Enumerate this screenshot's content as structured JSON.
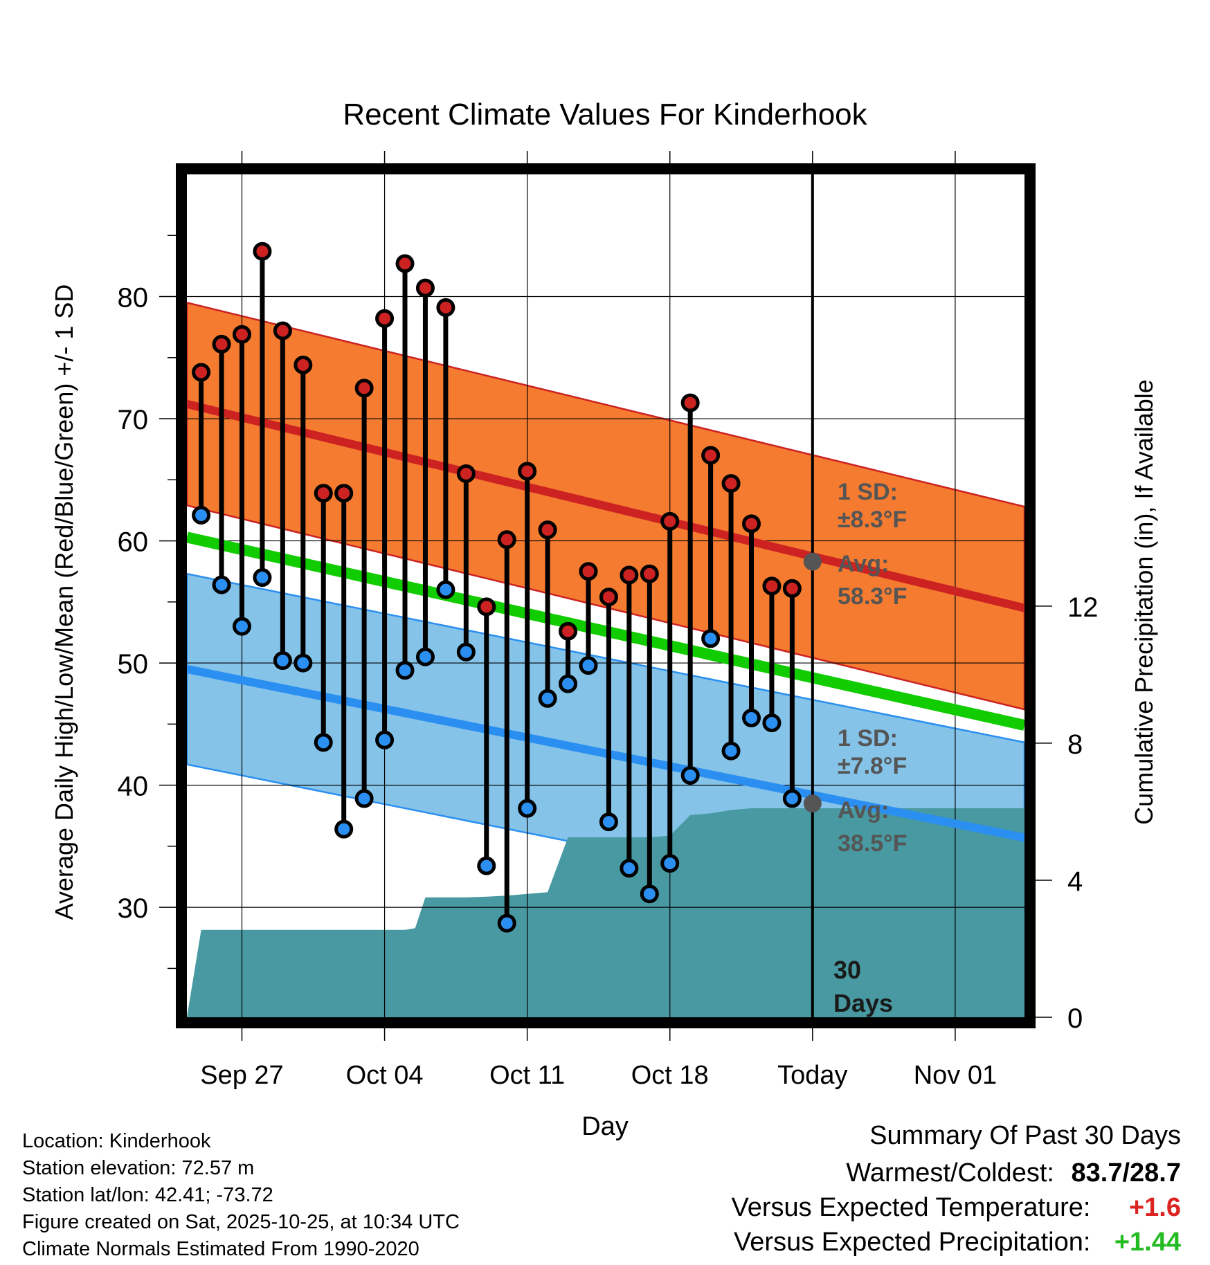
{
  "chart_data": {
    "type": "line",
    "title": "Recent Climate Values For Kinderhook",
    "xlabel": "Day",
    "ylabel": "Average Daily High/Low/Mean (Red/Blue/Green) +/- 1 SD",
    "y2label": "Cumulative Precipitation (in), If Available",
    "xlim": [
      -2.7,
      38.4
    ],
    "ylim": [
      21.0,
      90.0
    ],
    "y2lim": [
      0.0,
      24.6
    ],
    "grid": true,
    "x_ticks": [
      {
        "x": 0,
        "label": "Sep 27"
      },
      {
        "x": 7,
        "label": "Oct 04"
      },
      {
        "x": 14,
        "label": "Oct 11"
      },
      {
        "x": 21,
        "label": "Oct 18"
      },
      {
        "x": 28,
        "label": "Today"
      },
      {
        "x": 35,
        "label": "Nov 01"
      }
    ],
    "y_ticks": [
      30,
      40,
      50,
      60,
      70,
      80
    ],
    "y2_ticks": [
      0,
      4,
      8,
      12
    ],
    "days": [
      -2,
      -1,
      0,
      1,
      2,
      3,
      4,
      5,
      6,
      7,
      8,
      9,
      10,
      11,
      12,
      13,
      14,
      15,
      16,
      17,
      18,
      19,
      20,
      21,
      22,
      23,
      24,
      25,
      26,
      27
    ],
    "series": [
      {
        "name": "Daily High",
        "color": "#cc2222",
        "values": [
          73.8,
          76.1,
          76.9,
          83.7,
          77.2,
          74.4,
          63.9,
          63.9,
          72.5,
          78.2,
          82.7,
          80.7,
          79.1,
          65.5,
          54.6,
          60.1,
          65.7,
          60.9,
          52.6,
          57.5,
          55.4,
          57.2,
          57.3,
          61.6,
          71.3,
          67.0,
          64.7,
          61.4,
          56.3,
          56.1
        ]
      },
      {
        "name": "Daily Low",
        "color": "#2a8ff0",
        "values": [
          62.1,
          56.4,
          53.0,
          57.0,
          50.2,
          50.0,
          43.5,
          36.4,
          38.9,
          43.7,
          49.4,
          50.5,
          56.0,
          50.9,
          33.4,
          28.7,
          38.1,
          47.1,
          48.3,
          49.8,
          37.0,
          33.2,
          31.1,
          33.6,
          40.8,
          52.0,
          42.8,
          45.5,
          45.1,
          38.9
        ]
      }
    ],
    "normal_high": {
      "name": "Avg High",
      "start": 71.2,
      "end": 54.5,
      "sd": 8.3,
      "color": "#cc2222",
      "band_color": "#f47b30"
    },
    "normal_low": {
      "name": "Avg Low",
      "start": 49.5,
      "end": 35.7,
      "sd": 7.8,
      "color": "#2a8ff0",
      "band_color": "#85c3e9"
    },
    "normal_mean": {
      "name": "Avg Mean",
      "start": 60.3,
      "end": 44.9,
      "color": "#11cc00"
    },
    "precip_cumulative": {
      "color": "#4899a1",
      "points": [
        [
          -2.7,
          0.0
        ],
        [
          -2.0,
          2.55
        ],
        [
          8.0,
          2.55
        ],
        [
          8.5,
          2.6
        ],
        [
          9.0,
          3.5
        ],
        [
          11.0,
          3.5
        ],
        [
          12.0,
          3.52
        ],
        [
          13.0,
          3.55
        ],
        [
          14.0,
          3.6
        ],
        [
          15.0,
          3.65
        ],
        [
          16.0,
          5.25
        ],
        [
          20.0,
          5.25
        ],
        [
          21.0,
          5.3
        ],
        [
          22.0,
          5.9
        ],
        [
          23.0,
          5.95
        ],
        [
          24.0,
          6.05
        ],
        [
          25.0,
          6.1
        ],
        [
          26.0,
          6.1
        ],
        [
          28.0,
          6.1
        ],
        [
          38.4,
          6.1
        ]
      ]
    },
    "today_marker": {
      "x": 28,
      "avg_high": 58.3,
      "avg_low": 38.5
    },
    "annotations": {
      "high_sd": "1 SD:",
      "high_sd_value": "±8.3°F",
      "high_avg": "Avg:",
      "high_avg_value": "58.3°F",
      "low_sd": "1 SD:",
      "low_sd_value": "±7.8°F",
      "low_avg": "Avg:",
      "low_avg_value": "38.5°F",
      "period_number": "30",
      "period_unit": "Days"
    }
  },
  "info": {
    "location": "Location: Kinderhook",
    "elevation": "Station elevation: 72.57 m",
    "latlon": "Station lat/lon: 42.41; -73.72",
    "created": "Figure created on Sat, 2025-10-25, at 10:34 UTC",
    "normals": "Climate Normals Estimated From 1990-2020"
  },
  "summary": {
    "title": "Summary Of Past 30 Days",
    "warm_cold_label": "Warmest/Coldest:",
    "warm_cold_value": "83.7/28.7",
    "temp_label": "Versus Expected Temperature:",
    "temp_value": "+1.6",
    "temp_color": "#dd2222",
    "precip_label": "Versus Expected Precipitation:",
    "precip_value": "+1.44",
    "precip_color": "#22bb22"
  }
}
